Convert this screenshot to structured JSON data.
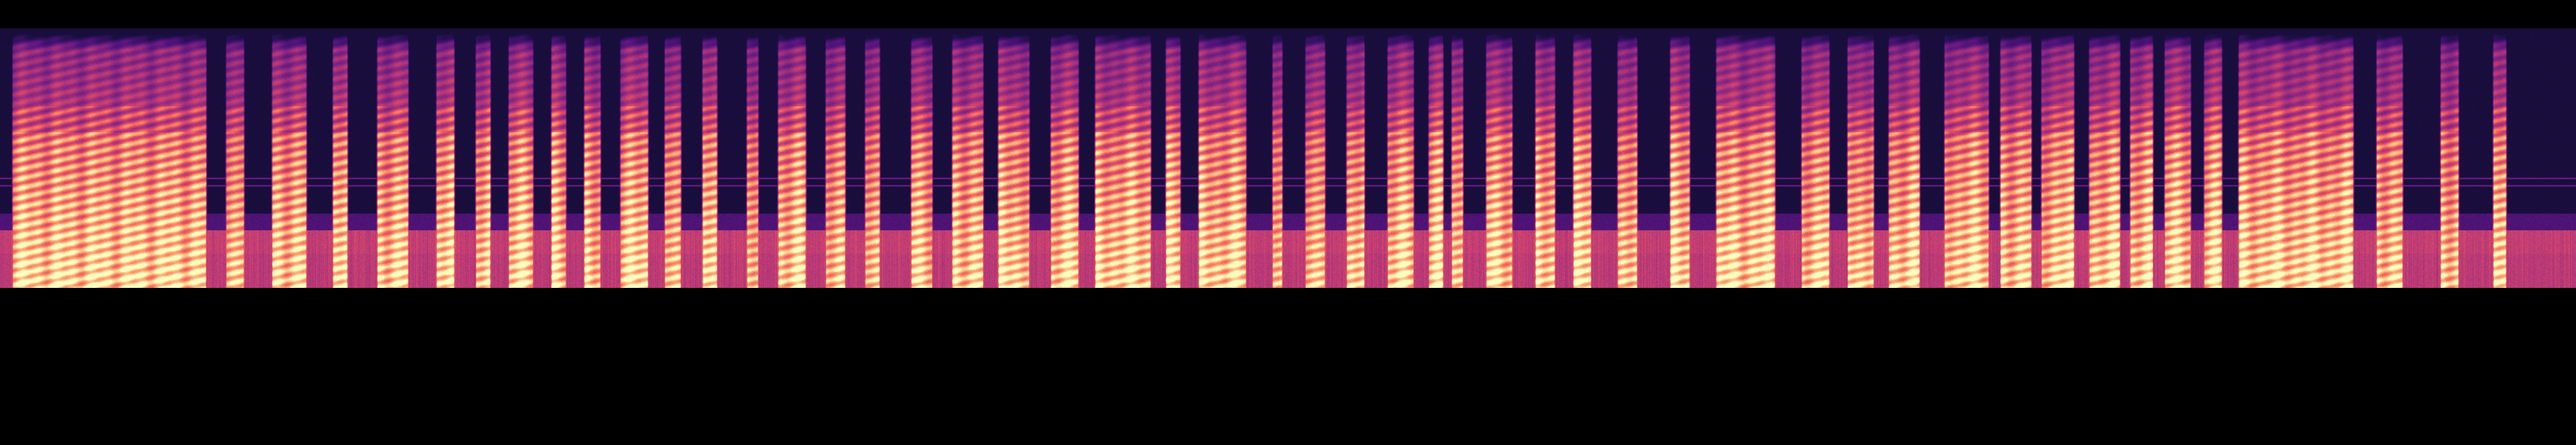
{
  "spectrogram": {
    "colormap": "magma",
    "background_color": "#000000",
    "silence_color": "#0b0628",
    "low_band_color": "#c0187a",
    "peak_color": "#fcfdbf",
    "axes_shown": false,
    "colorbar_shown": false
  }
}
